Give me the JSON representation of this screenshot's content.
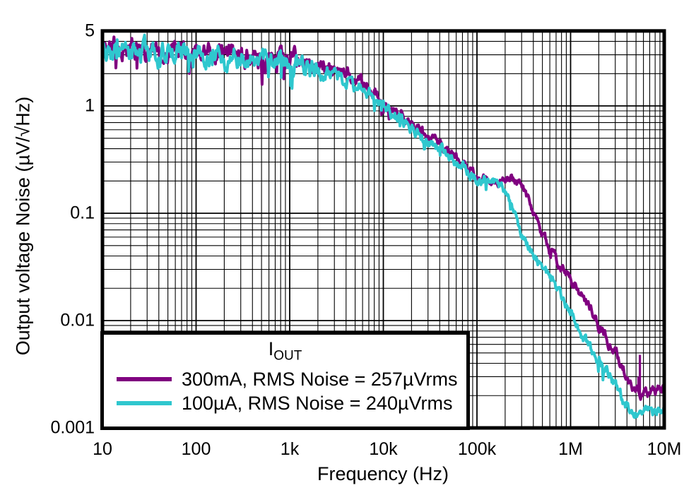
{
  "figure": {
    "background": "#ffffff",
    "frame_color": "#000000",
    "grid_color": "#000000"
  },
  "chart_data": {
    "type": "line",
    "title": "",
    "xlabel": "Frequency (Hz)",
    "ylabel": "Output voltage Noise (µV/√Hz)",
    "x_scale": "log",
    "y_scale": "log",
    "xlim": [
      10,
      10000000
    ],
    "ylim": [
      0.001,
      5
    ],
    "grid": "log-major-minor",
    "x_ticks": [
      {
        "value": 10,
        "label": "10"
      },
      {
        "value": 100,
        "label": "100"
      },
      {
        "value": 1000,
        "label": "1k"
      },
      {
        "value": 10000,
        "label": "10k"
      },
      {
        "value": 100000,
        "label": "100k"
      },
      {
        "value": 1000000,
        "label": "1M"
      },
      {
        "value": 10000000,
        "label": "10M"
      }
    ],
    "y_ticks": [
      {
        "value": 5,
        "label": "5"
      },
      {
        "value": 1,
        "label": "1"
      },
      {
        "value": 0.1,
        "label": "0.1"
      },
      {
        "value": 0.01,
        "label": "0.01"
      },
      {
        "value": 0.001,
        "label": "0.001"
      }
    ],
    "legend": {
      "title_main": "I",
      "title_sub": "OUT",
      "position": "bottom-left",
      "entries": [
        {
          "label": "300mA, RMS Noise = 257µVrms",
          "color": "#800080"
        },
        {
          "label": "100µA, RMS Noise = 240µVrms",
          "color": "#2FC7CE"
        }
      ]
    },
    "series": [
      {
        "name": "300mA",
        "rms_noise": "257µVrms",
        "color": "#800080",
        "noise_seed": 101,
        "points": [
          [
            10,
            3.5
          ],
          [
            20,
            3.3
          ],
          [
            50,
            3.1
          ],
          [
            100,
            3.0
          ],
          [
            200,
            2.9
          ],
          [
            500,
            2.8
          ],
          [
            1000,
            2.65
          ],
          [
            2000,
            2.5
          ],
          [
            3000,
            2.25
          ],
          [
            5000,
            1.75
          ],
          [
            7000,
            1.45
          ],
          [
            10000,
            1.15
          ],
          [
            15000,
            0.85
          ],
          [
            20000,
            0.68
          ],
          [
            30000,
            0.52
          ],
          [
            50000,
            0.37
          ],
          [
            70000,
            0.29
          ],
          [
            100000,
            0.225
          ],
          [
            130000,
            0.2
          ],
          [
            160000,
            0.19
          ],
          [
            200000,
            0.2
          ],
          [
            250000,
            0.205
          ],
          [
            300000,
            0.185
          ],
          [
            400000,
            0.11
          ],
          [
            500000,
            0.065
          ],
          [
            620000,
            0.042
          ],
          [
            800000,
            0.032
          ],
          [
            1000000,
            0.025
          ],
          [
            1500000,
            0.015
          ],
          [
            2000000,
            0.009
          ],
          [
            2500000,
            0.0065
          ],
          [
            3000000,
            0.005
          ],
          [
            4000000,
            0.003
          ],
          [
            5000000,
            0.0023
          ],
          [
            6000000,
            0.002
          ],
          [
            7000000,
            0.0021
          ],
          [
            8000000,
            0.0022
          ],
          [
            10000000,
            0.0024
          ]
        ]
      },
      {
        "name": "100µA",
        "rms_noise": "240µVrms",
        "color": "#2FC7CE",
        "noise_seed": 202,
        "points": [
          [
            10,
            3.4
          ],
          [
            20,
            3.2
          ],
          [
            50,
            3.0
          ],
          [
            100,
            2.95
          ],
          [
            200,
            2.85
          ],
          [
            500,
            2.7
          ],
          [
            1000,
            2.45
          ],
          [
            2000,
            2.15
          ],
          [
            3000,
            1.9
          ],
          [
            5000,
            1.5
          ],
          [
            7000,
            1.25
          ],
          [
            10000,
            1.02
          ],
          [
            15000,
            0.78
          ],
          [
            20000,
            0.62
          ],
          [
            30000,
            0.47
          ],
          [
            50000,
            0.34
          ],
          [
            70000,
            0.26
          ],
          [
            100000,
            0.21
          ],
          [
            130000,
            0.205
          ],
          [
            160000,
            0.195
          ],
          [
            200000,
            0.16
          ],
          [
            250000,
            0.1
          ],
          [
            300000,
            0.062
          ],
          [
            400000,
            0.042
          ],
          [
            500000,
            0.032
          ],
          [
            620000,
            0.024
          ],
          [
            800000,
            0.016
          ],
          [
            1000000,
            0.0115
          ],
          [
            1500000,
            0.0062
          ],
          [
            2000000,
            0.0042
          ],
          [
            2500000,
            0.0032
          ],
          [
            3000000,
            0.0024
          ],
          [
            4000000,
            0.0016
          ],
          [
            5000000,
            0.00145
          ],
          [
            6000000,
            0.0014
          ],
          [
            8000000,
            0.0015
          ],
          [
            10000000,
            0.0015
          ]
        ]
      }
    ],
    "spikes": [
      {
        "series": "300mA",
        "freq": 5300000,
        "value": 0.003
      },
      {
        "series": "300mA",
        "freq": 5500000,
        "value": 0.0048
      }
    ]
  }
}
